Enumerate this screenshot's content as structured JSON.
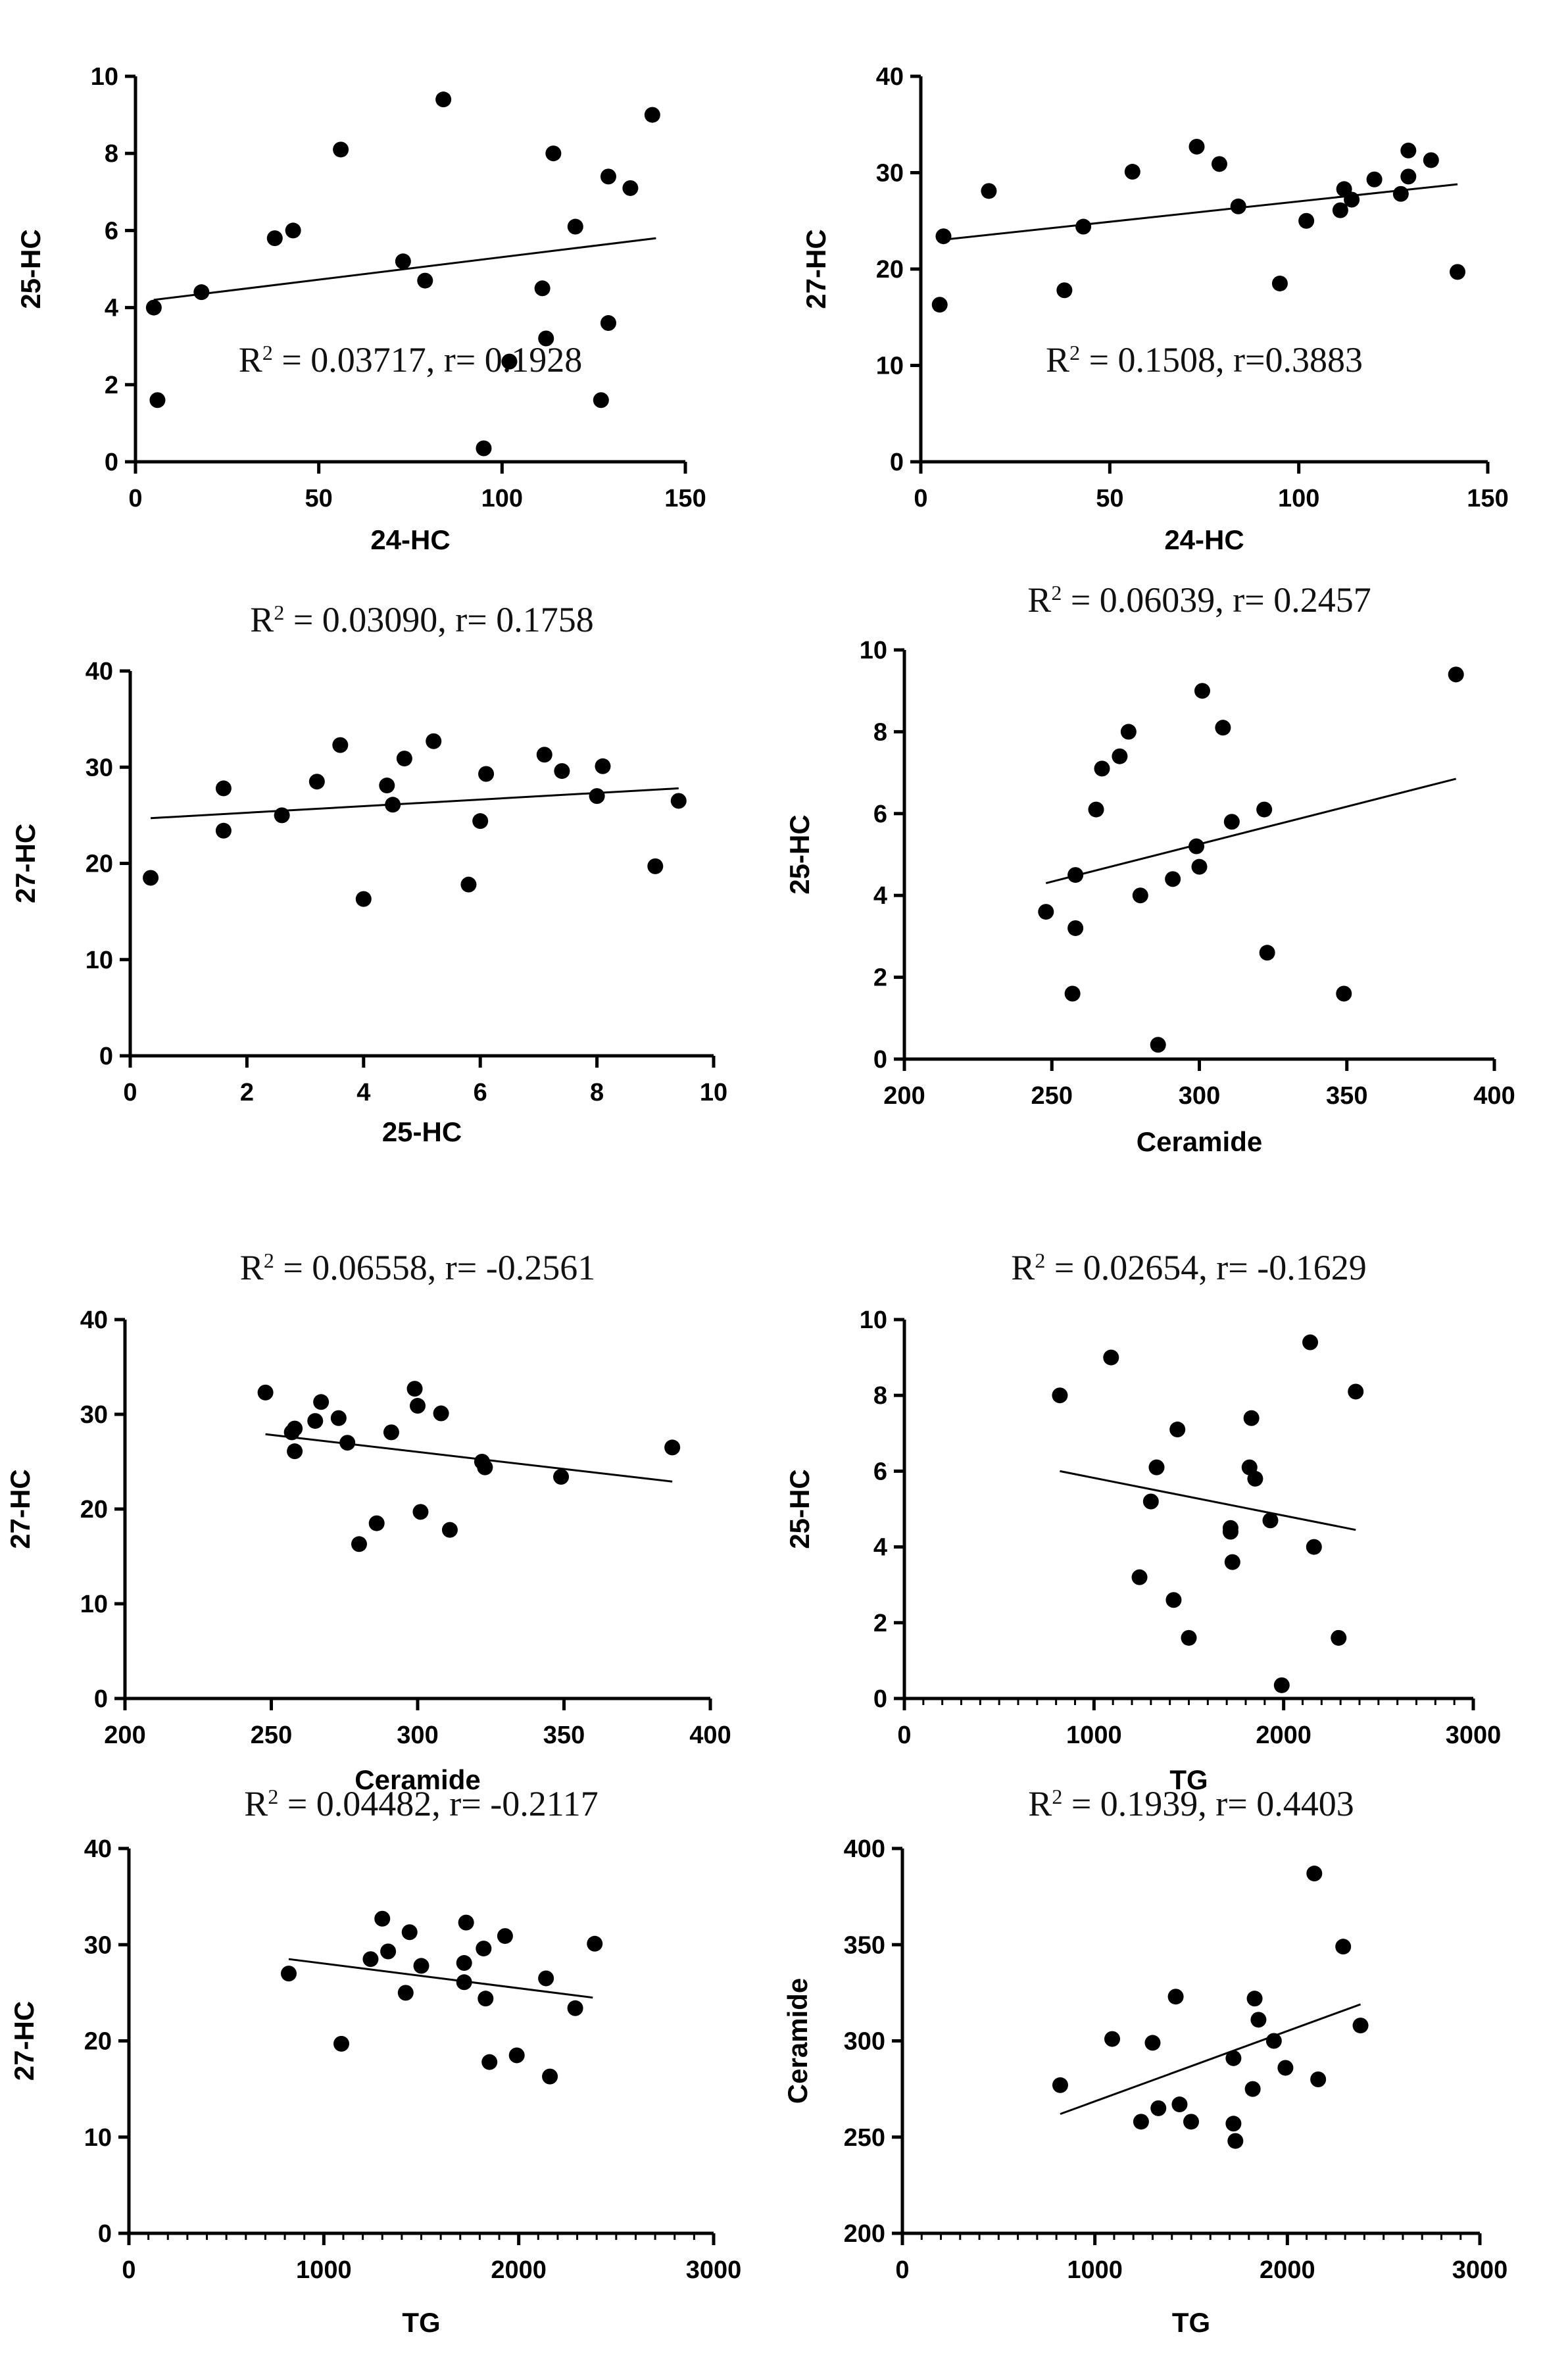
{
  "chart_data": [
    {
      "type": "scatter",
      "title": "R2 = 0.03717, r= 0.1928",
      "title_parts": {
        "r": "R",
        "sup": "2",
        "rest": " = 0.03717, r= 0.1928"
      },
      "xlabel": "24-HC",
      "ylabel": "25-HC",
      "xlim": [
        0,
        150
      ],
      "ylim": [
        0,
        10
      ],
      "xticks": [
        0,
        50,
        100,
        150
      ],
      "yticks": [
        0,
        2,
        4,
        6,
        8,
        10
      ],
      "minor_x": false,
      "fit": {
        "x": [
          5,
          142
        ],
        "y": [
          4.2,
          5.8
        ]
      },
      "points": [
        [
          5,
          4.0
        ],
        [
          6,
          1.6
        ],
        [
          18,
          4.4
        ],
        [
          38,
          5.8
        ],
        [
          43,
          6.0
        ],
        [
          56,
          8.1
        ],
        [
          73,
          5.2
        ],
        [
          79,
          4.7
        ],
        [
          84,
          9.4
        ],
        [
          95,
          0.35
        ],
        [
          102,
          2.6
        ],
        [
          111,
          4.5
        ],
        [
          112,
          3.2
        ],
        [
          114,
          8.0
        ],
        [
          120,
          6.1
        ],
        [
          127,
          1.6
        ],
        [
          129,
          7.4
        ],
        [
          129,
          3.6
        ],
        [
          135,
          7.1
        ],
        [
          141,
          9.0
        ]
      ]
    },
    {
      "type": "scatter",
      "title": "R2 = 0.1508, r=0.3883",
      "title_parts": {
        "r": "R",
        "sup": "2",
        "rest": " = 0.1508, r=0.3883"
      },
      "xlabel": "24-HC",
      "ylabel": "27-HC",
      "xlim": [
        0,
        150
      ],
      "ylim": [
        0,
        40
      ],
      "xticks": [
        0,
        50,
        100,
        150
      ],
      "yticks": [
        0,
        10,
        20,
        30,
        40
      ],
      "minor_x": false,
      "fit": {
        "x": [
          5,
          142
        ],
        "y": [
          23.0,
          28.8
        ]
      },
      "points": [
        [
          5,
          16.3
        ],
        [
          6,
          23.4
        ],
        [
          18,
          28.1
        ],
        [
          38,
          17.8
        ],
        [
          43,
          24.4
        ],
        [
          56,
          30.1
        ],
        [
          73,
          32.7
        ],
        [
          79,
          30.9
        ],
        [
          84,
          26.5
        ],
        [
          95,
          18.5
        ],
        [
          102,
          25.0
        ],
        [
          111,
          26.1
        ],
        [
          112,
          28.3
        ],
        [
          114,
          27.2
        ],
        [
          120,
          29.3
        ],
        [
          127,
          27.8
        ],
        [
          129,
          29.6
        ],
        [
          129,
          32.3
        ],
        [
          135,
          31.3
        ],
        [
          142,
          19.7
        ]
      ]
    },
    {
      "type": "scatter",
      "title": "R2 = 0.03090, r= 0.1758",
      "title_parts": {
        "r": "R",
        "sup": "2",
        "rest": " = 0.03090, r= 0.1758"
      },
      "xlabel": "25-HC",
      "ylabel": "27-HC",
      "xlim": [
        0,
        10
      ],
      "ylim": [
        0,
        40
      ],
      "xticks": [
        0,
        2,
        4,
        6,
        8,
        10
      ],
      "yticks": [
        0,
        10,
        20,
        30,
        40
      ],
      "minor_x": false,
      "fit": {
        "x": [
          0.35,
          9.4
        ],
        "y": [
          24.7,
          27.8
        ]
      },
      "points": [
        [
          0.35,
          18.5
        ],
        [
          1.6,
          27.8
        ],
        [
          1.6,
          23.4
        ],
        [
          2.6,
          25.0
        ],
        [
          3.2,
          28.5
        ],
        [
          3.6,
          32.3
        ],
        [
          4.0,
          16.3
        ],
        [
          4.4,
          28.1
        ],
        [
          4.5,
          26.1
        ],
        [
          4.7,
          30.9
        ],
        [
          5.2,
          32.7
        ],
        [
          5.8,
          17.8
        ],
        [
          6.0,
          24.4
        ],
        [
          6.1,
          29.3
        ],
        [
          7.1,
          31.3
        ],
        [
          7.4,
          29.6
        ],
        [
          8.0,
          27.0
        ],
        [
          8.1,
          30.1
        ],
        [
          9.0,
          19.7
        ],
        [
          9.4,
          26.5
        ]
      ]
    },
    {
      "type": "scatter",
      "title": "R2 = 0.06039, r= 0.2457",
      "title_parts": {
        "r": "R",
        "sup": "2",
        "rest": " = 0.06039, r= 0.2457"
      },
      "xlabel": "Ceramide",
      "ylabel": "25-HC",
      "xlim": [
        200,
        400
      ],
      "ylim": [
        0,
        10
      ],
      "xticks": [
        200,
        250,
        300,
        350,
        400
      ],
      "yticks": [
        0,
        2,
        4,
        6,
        8,
        10
      ],
      "minor_x": false,
      "fit": {
        "x": [
          248,
          387
        ],
        "y": [
          4.3,
          6.85
        ]
      },
      "points": [
        [
          248,
          3.6
        ],
        [
          257,
          1.6
        ],
        [
          258,
          4.5
        ],
        [
          258,
          3.2
        ],
        [
          265,
          6.1
        ],
        [
          267,
          7.1
        ],
        [
          273,
          7.4
        ],
        [
          276,
          8.0
        ],
        [
          280,
          4.0
        ],
        [
          286,
          0.35
        ],
        [
          291,
          4.4
        ],
        [
          299,
          5.2
        ],
        [
          300,
          4.7
        ],
        [
          301,
          9.0
        ],
        [
          308,
          8.1
        ],
        [
          311,
          5.8
        ],
        [
          322,
          6.1
        ],
        [
          323,
          2.6
        ],
        [
          349,
          1.6
        ],
        [
          387,
          9.4
        ]
      ]
    },
    {
      "type": "scatter",
      "title": "R2 = 0.06558, r= -0.2561",
      "title_parts": {
        "r": "R",
        "sup": "2",
        "rest": " = 0.06558, r= -0.2561"
      },
      "xlabel": "Ceramide",
      "ylabel": "27-HC",
      "xlim": [
        200,
        400
      ],
      "ylim": [
        0,
        40
      ],
      "xticks": [
        200,
        250,
        300,
        350,
        400
      ],
      "yticks": [
        0,
        10,
        20,
        30,
        40
      ],
      "minor_x": false,
      "fit": {
        "x": [
          248,
          387
        ],
        "y": [
          27.9,
          22.9
        ]
      },
      "points": [
        [
          248,
          32.3
        ],
        [
          257,
          28.1
        ],
        [
          258,
          28.5
        ],
        [
          258,
          26.1
        ],
        [
          265,
          29.3
        ],
        [
          267,
          31.3
        ],
        [
          273,
          29.6
        ],
        [
          276,
          27.0
        ],
        [
          280,
          16.3
        ],
        [
          286,
          18.5
        ],
        [
          291,
          28.1
        ],
        [
          299,
          32.7
        ],
        [
          300,
          30.9
        ],
        [
          301,
          19.7
        ],
        [
          308,
          30.1
        ],
        [
          311,
          17.8
        ],
        [
          322,
          25.0
        ],
        [
          323,
          24.4
        ],
        [
          349,
          23.4
        ],
        [
          387,
          26.5
        ]
      ]
    },
    {
      "type": "scatter",
      "title": "R2 = 0.02654, r= -0.1629",
      "title_parts": {
        "r": "R",
        "sup": "2",
        "rest": " = 0.02654, r= -0.1629"
      },
      "xlabel": "TG",
      "ylabel": "25-HC",
      "xlim": [
        0,
        3000
      ],
      "ylim": [
        0,
        10
      ],
      "xticks": [
        0,
        1000,
        2000,
        3000
      ],
      "yticks": [
        0,
        2,
        4,
        6,
        8,
        10
      ],
      "minor_x": true,
      "fit": {
        "x": [
          820,
          2380
        ],
        "y": [
          6.0,
          4.45
        ]
      },
      "points": [
        [
          820,
          8.0
        ],
        [
          1090,
          9.0
        ],
        [
          1240,
          3.2
        ],
        [
          1300,
          5.2
        ],
        [
          1330,
          6.1
        ],
        [
          1420,
          2.6
        ],
        [
          1440,
          7.1
        ],
        [
          1500,
          1.6
        ],
        [
          1720,
          4.5
        ],
        [
          1720,
          4.4
        ],
        [
          1730,
          3.6
        ],
        [
          1820,
          6.1
        ],
        [
          1830,
          7.4
        ],
        [
          1850,
          5.8
        ],
        [
          1930,
          4.7
        ],
        [
          1990,
          0.35
        ],
        [
          2140,
          9.4
        ],
        [
          2160,
          4.0
        ],
        [
          2290,
          1.6
        ],
        [
          2380,
          8.1
        ]
      ]
    },
    {
      "type": "scatter",
      "title": "R2 = 0.04482, r= -0.2117",
      "title_parts": {
        "r": "R",
        "sup": "2",
        "rest": " = 0.04482, r= -0.2117"
      },
      "xlabel": "TG",
      "ylabel": "27-HC",
      "xlim": [
        0,
        3000
      ],
      "ylim": [
        0,
        40
      ],
      "xticks": [
        0,
        1000,
        2000,
        3000
      ],
      "yticks": [
        0,
        10,
        20,
        30,
        40
      ],
      "minor_x": true,
      "fit": {
        "x": [
          820,
          2380
        ],
        "y": [
          28.5,
          24.5
        ]
      },
      "points": [
        [
          820,
          27.0
        ],
        [
          1090,
          19.7
        ],
        [
          1240,
          28.5
        ],
        [
          1300,
          32.7
        ],
        [
          1330,
          29.3
        ],
        [
          1420,
          25.0
        ],
        [
          1440,
          31.3
        ],
        [
          1500,
          27.8
        ],
        [
          1720,
          28.1
        ],
        [
          1720,
          26.1
        ],
        [
          1730,
          32.3
        ],
        [
          1820,
          29.6
        ],
        [
          1830,
          24.4
        ],
        [
          1850,
          17.8
        ],
        [
          1930,
          30.9
        ],
        [
          1990,
          18.5
        ],
        [
          2140,
          26.5
        ],
        [
          2160,
          16.3
        ],
        [
          2290,
          23.4
        ],
        [
          2390,
          30.1
        ]
      ]
    },
    {
      "type": "scatter",
      "title": "R2 = 0.1939, r= 0.4403",
      "title_parts": {
        "r": "R",
        "sup": "2",
        "rest": " = 0.1939, r= 0.4403"
      },
      "xlabel": "TG",
      "ylabel": "Ceramide",
      "xlim": [
        0,
        3000
      ],
      "ylim": [
        200,
        400
      ],
      "xticks": [
        0,
        1000,
        2000,
        3000
      ],
      "yticks": [
        200,
        250,
        300,
        350,
        400
      ],
      "minor_x": true,
      "fit": {
        "x": [
          820,
          2380
        ],
        "y": [
          262,
          319
        ]
      },
      "points": [
        [
          820,
          277
        ],
        [
          1090,
          301
        ],
        [
          1240,
          258
        ],
        [
          1300,
          299
        ],
        [
          1330,
          265
        ],
        [
          1420,
          323
        ],
        [
          1440,
          267
        ],
        [
          1500,
          258
        ],
        [
          1720,
          291
        ],
        [
          1720,
          257
        ],
        [
          1730,
          248
        ],
        [
          1820,
          275
        ],
        [
          1830,
          322
        ],
        [
          1850,
          311
        ],
        [
          1930,
          300
        ],
        [
          1990,
          286
        ],
        [
          2140,
          387
        ],
        [
          2160,
          280
        ],
        [
          2290,
          349
        ],
        [
          2380,
          308
        ]
      ]
    }
  ]
}
